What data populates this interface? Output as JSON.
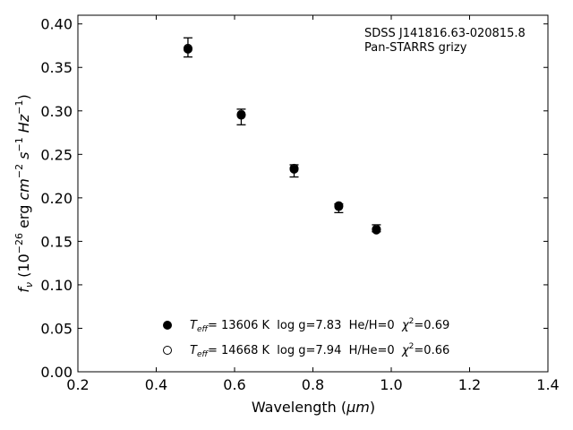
{
  "chart_data": {
    "type": "scatter",
    "xlabel_main": "Wavelength (",
    "xlabel_unit": "μm",
    "xlabel_close": ")",
    "ylabel_f": "f",
    "ylabel_nu": "ν",
    "ylabel_unit_open": " (10",
    "ylabel_exp1": "−26",
    "ylabel_erg": " erg ",
    "ylabel_cm": "cm",
    "ylabel_exp2": "−2",
    "ylabel_s": " s",
    "ylabel_exp3": "−1",
    "ylabel_hz": " Hz",
    "ylabel_exp4": "−1",
    "ylabel_close": ")",
    "xlim": [
      0.2,
      1.4
    ],
    "ylim": [
      0.0,
      0.41
    ],
    "x_ticks": [
      0.2,
      0.4,
      0.6,
      0.8,
      1.0,
      1.2,
      1.4
    ],
    "x_tick_labels": [
      "0.2",
      "0.4",
      "0.6",
      "0.8",
      "1.0",
      "1.2",
      "1.4"
    ],
    "y_ticks": [
      0.0,
      0.05,
      0.1,
      0.15,
      0.2,
      0.25,
      0.3,
      0.35,
      0.4
    ],
    "y_tick_labels": [
      "0.00",
      "0.05",
      "0.10",
      "0.15",
      "0.20",
      "0.25",
      "0.30",
      "0.35",
      "0.40"
    ],
    "annotation_line1": "SDSS J141816.63-020815.8",
    "annotation_line2": "Pan-STARRS grizy",
    "observed": {
      "x": [
        0.481,
        0.617,
        0.752,
        0.866,
        0.962
      ],
      "y": [
        0.373,
        0.293,
        0.231,
        0.188,
        0.165
      ],
      "yerr": [
        0.011,
        0.009,
        0.007,
        0.005,
        0.004
      ]
    },
    "series": [
      {
        "marker": "filled-circle",
        "x": [
          0.481,
          0.617,
          0.752,
          0.866,
          0.962
        ],
        "y": [
          0.371,
          0.295,
          0.233,
          0.19,
          0.163
        ],
        "label": {
          "teff": "T",
          "teff_sub": "eff",
          "text1": "= 13606 K  log g=7.83  He/H=0  ",
          "chi": "χ",
          "chi_exp": "2",
          "text2": "=0.69"
        }
      },
      {
        "marker": "open-circle",
        "x": [
          0.481,
          0.617,
          0.752,
          0.866,
          0.962
        ],
        "y": [
          0.372,
          0.296,
          0.234,
          0.191,
          0.164
        ],
        "label": {
          "teff": "T",
          "teff_sub": "eff",
          "text1": "= 14668 K  log g=7.94  H/He=0  ",
          "chi": "χ",
          "chi_exp": "2",
          "text2": "=0.66"
        }
      }
    ],
    "colors": {
      "marker": "#000000",
      "axes": "#000000"
    },
    "legend_position": "lower-center",
    "grid": false
  }
}
